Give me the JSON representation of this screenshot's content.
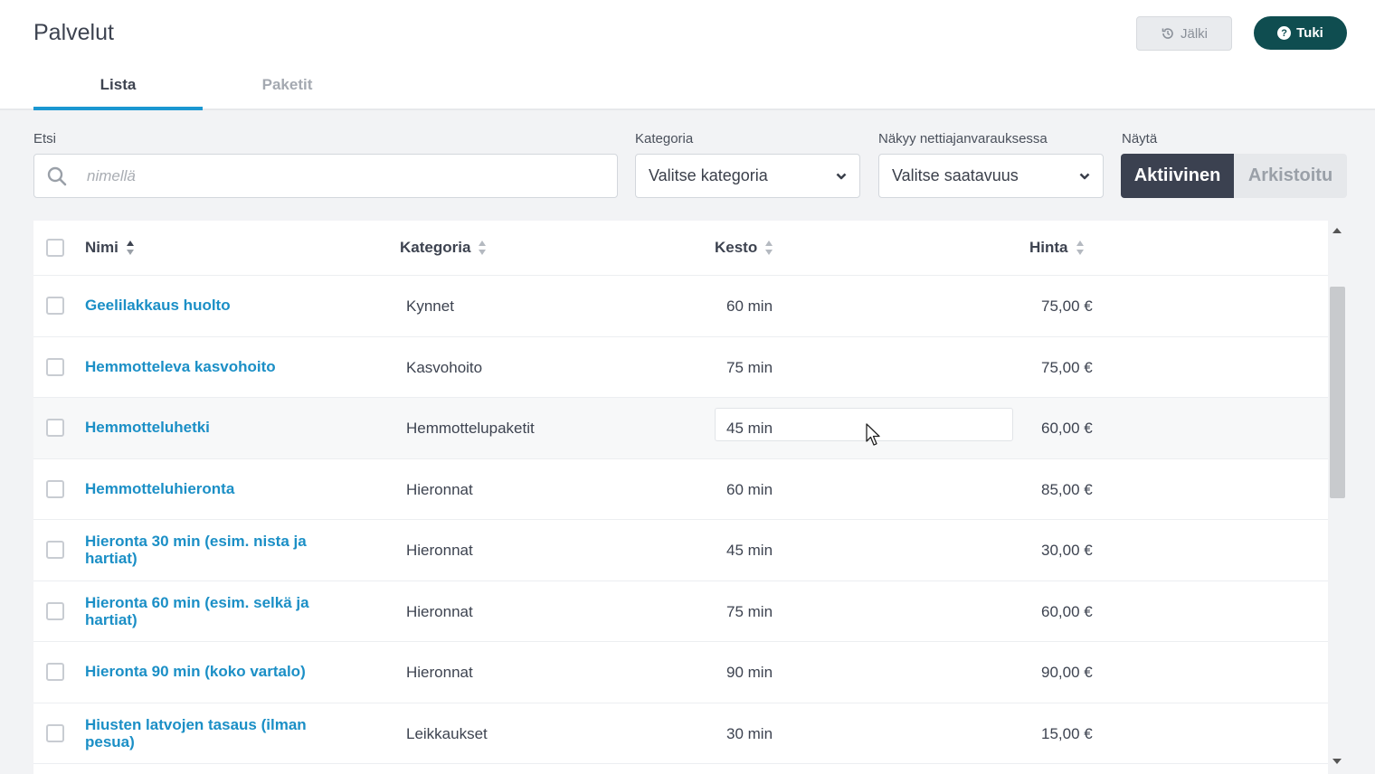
{
  "header": {
    "title": "Palvelut",
    "back_label": "Jälki",
    "support_label": "Tuki"
  },
  "tabs": [
    {
      "label": "Lista",
      "active": true
    },
    {
      "label": "Paketit",
      "active": false
    }
  ],
  "filters": {
    "search_label": "Etsi",
    "search_placeholder": "nimellä",
    "category_label": "Kategoria",
    "category_value": "Valitse kategoria",
    "availability_label": "Näkyy nettiajanvarauksessa",
    "availability_value": "Valitse saatavuus",
    "show_label": "Näytä",
    "show_options": [
      "Aktiivinen",
      "Arkistoitu"
    ],
    "show_selected": "Aktiivinen"
  },
  "table": {
    "columns": [
      "Nimi",
      "Kategoria",
      "Kesto",
      "Hinta"
    ],
    "rows": [
      {
        "name": "Geelilakkaus huolto",
        "category": "Kynnet",
        "duration": "60 min",
        "price": "75,00 €"
      },
      {
        "name": "Hemmotteleva kasvohoito",
        "category": "Kasvohoito",
        "duration": "75 min",
        "price": "75,00 €"
      },
      {
        "name": "Hemmotteluhetki",
        "category": "Hemmottelupaketit",
        "duration": "45 min",
        "price": "60,00 €"
      },
      {
        "name": "Hemmotteluhieronta",
        "category": "Hieronnat",
        "duration": "60 min",
        "price": "85,00 €"
      },
      {
        "name": "Hieronta 30 min (esim. nista ja hartiat)",
        "category": "Hieronnat",
        "duration": "45 min",
        "price": "30,00 €"
      },
      {
        "name": "Hieronta 60 min (esim. selkä ja hartiat)",
        "category": "Hieronnat",
        "duration": "75 min",
        "price": "60,00 €"
      },
      {
        "name": "Hieronta 90 min (koko vartalo)",
        "category": "Hieronnat",
        "duration": "90 min",
        "price": "90,00 €"
      },
      {
        "name": "Hiusten latvojen tasaus (ilman pesua)",
        "category": "Leikkaukset",
        "duration": "30 min",
        "price": "15,00 €"
      }
    ]
  },
  "colors": {
    "accent": "#1b97d1",
    "link": "#1b8fc6",
    "support_bg": "#0f4d50",
    "segment_active": "#3b4150"
  }
}
